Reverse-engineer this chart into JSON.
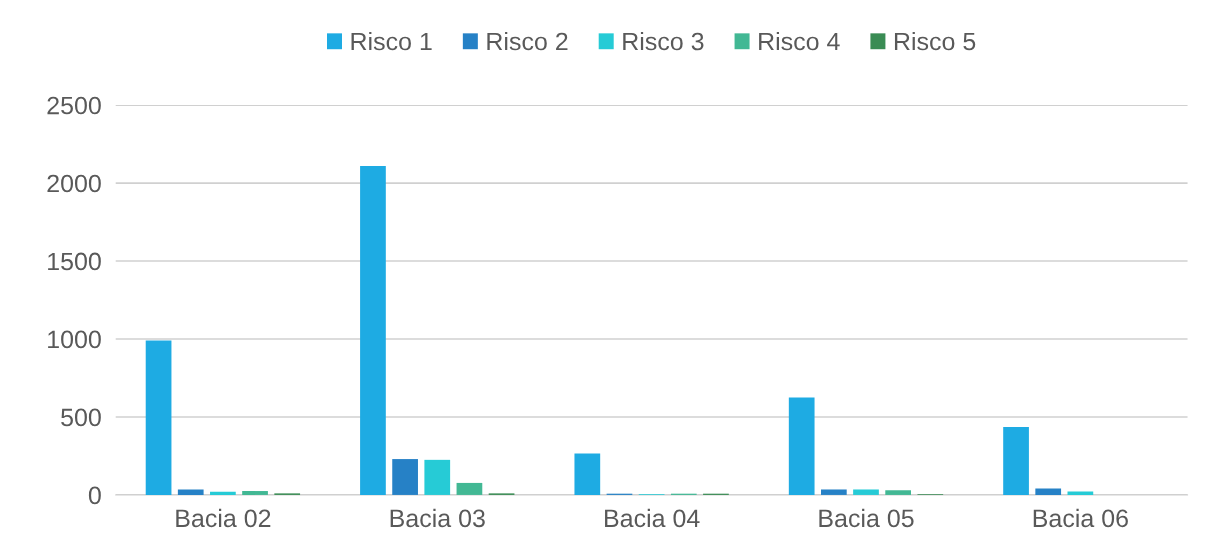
{
  "chart_data": {
    "type": "bar",
    "categories": [
      "Bacia 02",
      "Bacia 03",
      "Bacia 04",
      "Bacia 05",
      "Bacia 06"
    ],
    "series": [
      {
        "name": "Risco 1",
        "color": "#1eabe3",
        "values": [
          990,
          2110,
          265,
          625,
          435
        ]
      },
      {
        "name": "Risco 2",
        "color": "#2681c6",
        "values": [
          35,
          230,
          8,
          35,
          42
        ]
      },
      {
        "name": "Risco 3",
        "color": "#26cbd6",
        "values": [
          20,
          225,
          5,
          35,
          22
        ]
      },
      {
        "name": "Risco 4",
        "color": "#42b894",
        "values": [
          25,
          77,
          8,
          30,
          0
        ]
      },
      {
        "name": "Risco 5",
        "color": "#3a8c54",
        "values": [
          10,
          10,
          8,
          5,
          0
        ]
      }
    ],
    "ylim": [
      0,
      2500
    ],
    "yticks": [
      0,
      500,
      1000,
      1500,
      2000,
      2500
    ],
    "grid": "y",
    "legend": "top"
  }
}
